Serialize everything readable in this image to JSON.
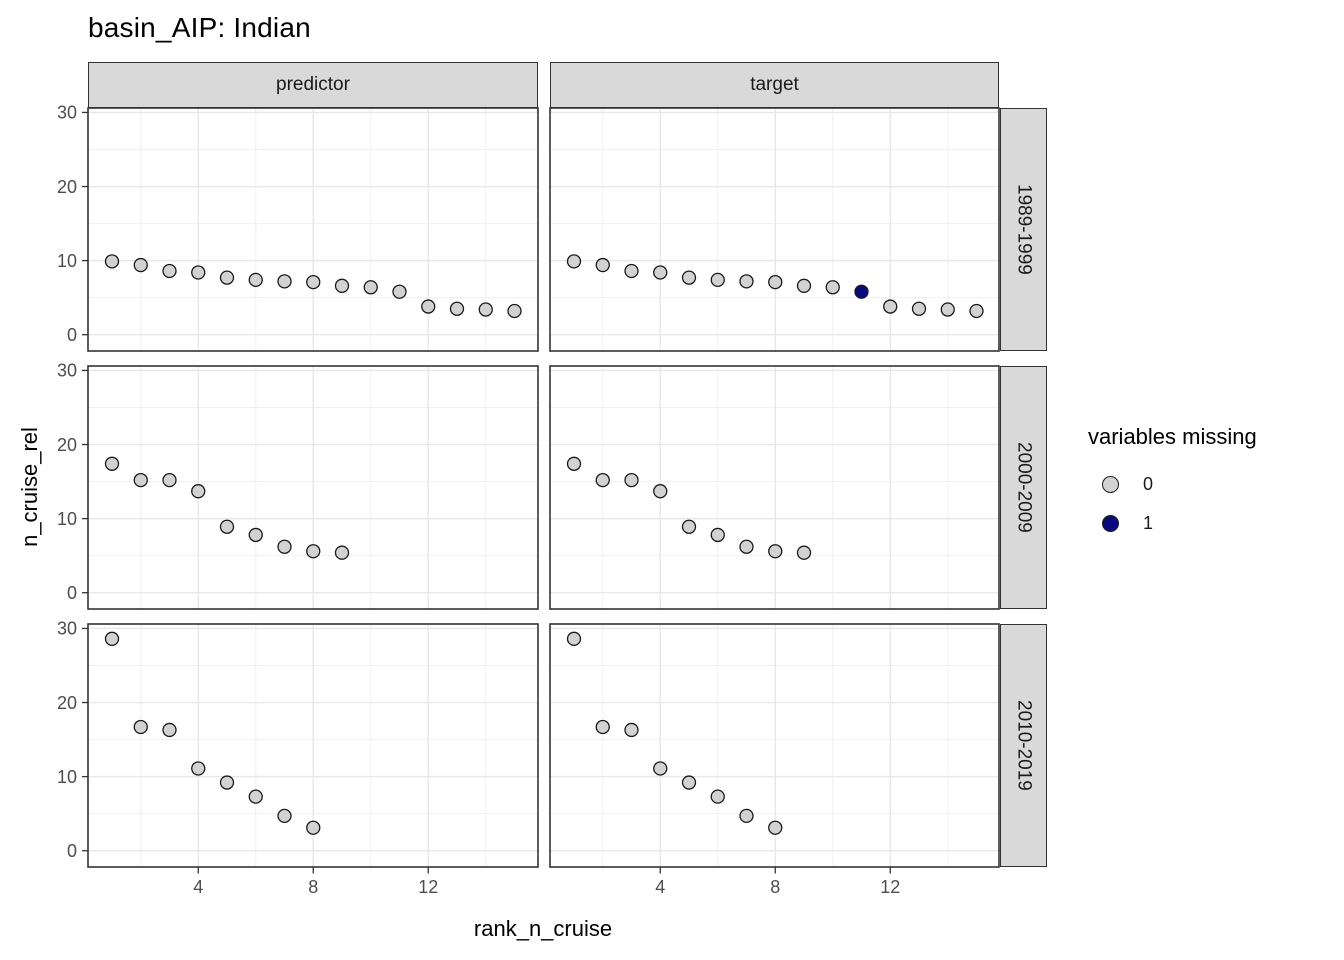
{
  "title": "basin_AIP: Indian",
  "chart_data": {
    "type": "scatter",
    "title": "basin_AIP: Indian",
    "xlabel": "rank_n_cruise",
    "ylabel": "n_cruise_rel",
    "facet_cols": [
      "predictor",
      "target"
    ],
    "facet_rows": [
      "1989-1999",
      "2000-2009",
      "2010-2019"
    ],
    "x_ticks": [
      4,
      8,
      12
    ],
    "x_minor_ticks": [
      2,
      6,
      10,
      14
    ],
    "y_ticks": [
      0,
      10,
      20,
      30
    ],
    "y_minor_ticks": [
      5,
      15,
      25
    ],
    "y_domain": [
      -2.2,
      30.6
    ],
    "x_rank_domain": [
      0.17,
      15.83
    ],
    "grid": true,
    "legend": {
      "title": "variables missing",
      "position": "right",
      "items": [
        {
          "label": "0",
          "value": 0,
          "color": "#d2d2d2"
        },
        {
          "label": "1",
          "value": 1,
          "color": "#0a0a80"
        }
      ]
    },
    "point_format": "[rank_n_cruise, n_cruise_rel, variables_missing]",
    "panels": [
      {
        "col": "predictor",
        "row": "1989-1999",
        "points": [
          [
            1,
            9.9,
            0
          ],
          [
            2,
            9.4,
            0
          ],
          [
            3,
            8.6,
            0
          ],
          [
            4,
            8.4,
            0
          ],
          [
            5,
            7.7,
            0
          ],
          [
            6,
            7.4,
            0
          ],
          [
            7,
            7.2,
            0
          ],
          [
            8,
            7.1,
            0
          ],
          [
            9,
            6.6,
            0
          ],
          [
            10,
            6.4,
            0
          ],
          [
            11,
            5.8,
            0
          ],
          [
            12,
            3.8,
            0
          ],
          [
            13,
            3.5,
            0
          ],
          [
            14,
            3.4,
            0
          ],
          [
            15,
            3.2,
            0
          ]
        ]
      },
      {
        "col": "target",
        "row": "1989-1999",
        "points": [
          [
            1,
            9.9,
            0
          ],
          [
            2,
            9.4,
            0
          ],
          [
            3,
            8.6,
            0
          ],
          [
            4,
            8.4,
            0
          ],
          [
            5,
            7.7,
            0
          ],
          [
            6,
            7.4,
            0
          ],
          [
            7,
            7.2,
            0
          ],
          [
            8,
            7.1,
            0
          ],
          [
            9,
            6.6,
            0
          ],
          [
            10,
            6.4,
            0
          ],
          [
            11,
            5.8,
            1
          ],
          [
            12,
            3.8,
            0
          ],
          [
            13,
            3.5,
            0
          ],
          [
            14,
            3.4,
            0
          ],
          [
            15,
            3.2,
            0
          ]
        ]
      },
      {
        "col": "predictor",
        "row": "2000-2009",
        "points": [
          [
            1,
            17.4,
            0
          ],
          [
            2,
            15.2,
            0
          ],
          [
            3,
            15.2,
            0
          ],
          [
            4,
            13.7,
            0
          ],
          [
            5,
            8.9,
            0
          ],
          [
            6,
            7.8,
            0
          ],
          [
            7,
            6.2,
            0
          ],
          [
            8,
            5.6,
            0
          ],
          [
            9,
            5.4,
            0
          ]
        ]
      },
      {
        "col": "target",
        "row": "2000-2009",
        "points": [
          [
            1,
            17.4,
            0
          ],
          [
            2,
            15.2,
            0
          ],
          [
            3,
            15.2,
            0
          ],
          [
            4,
            13.7,
            0
          ],
          [
            5,
            8.9,
            0
          ],
          [
            6,
            7.8,
            0
          ],
          [
            7,
            6.2,
            0
          ],
          [
            8,
            5.6,
            0
          ],
          [
            9,
            5.4,
            0
          ]
        ]
      },
      {
        "col": "predictor",
        "row": "2010-2019",
        "points": [
          [
            1,
            28.6,
            0
          ],
          [
            2,
            16.7,
            0
          ],
          [
            3,
            16.3,
            0
          ],
          [
            4,
            11.1,
            0
          ],
          [
            5,
            9.2,
            0
          ],
          [
            6,
            7.3,
            0
          ],
          [
            7,
            4.7,
            0
          ],
          [
            8,
            3.1,
            0
          ]
        ]
      },
      {
        "col": "target",
        "row": "2010-2019",
        "points": [
          [
            1,
            28.6,
            0
          ],
          [
            2,
            16.7,
            0
          ],
          [
            3,
            16.3,
            0
          ],
          [
            4,
            11.1,
            0
          ],
          [
            5,
            9.2,
            0
          ],
          [
            6,
            7.3,
            0
          ],
          [
            7,
            4.7,
            0
          ],
          [
            8,
            3.1,
            0
          ]
        ]
      }
    ]
  },
  "colors": {
    "point_fill_missing0": "#d2d2d2",
    "point_fill_missing1": "#0a0a80",
    "point_stroke": "#1a1a1a",
    "strip_fill": "#d9d9d9",
    "strip_border": "#333333",
    "panel_border": "#333333",
    "grid_major": "#e8e8e8",
    "grid_minor": "#f0f0f0",
    "tick_label": "#4d4d4d",
    "tick_mark": "#333333"
  }
}
